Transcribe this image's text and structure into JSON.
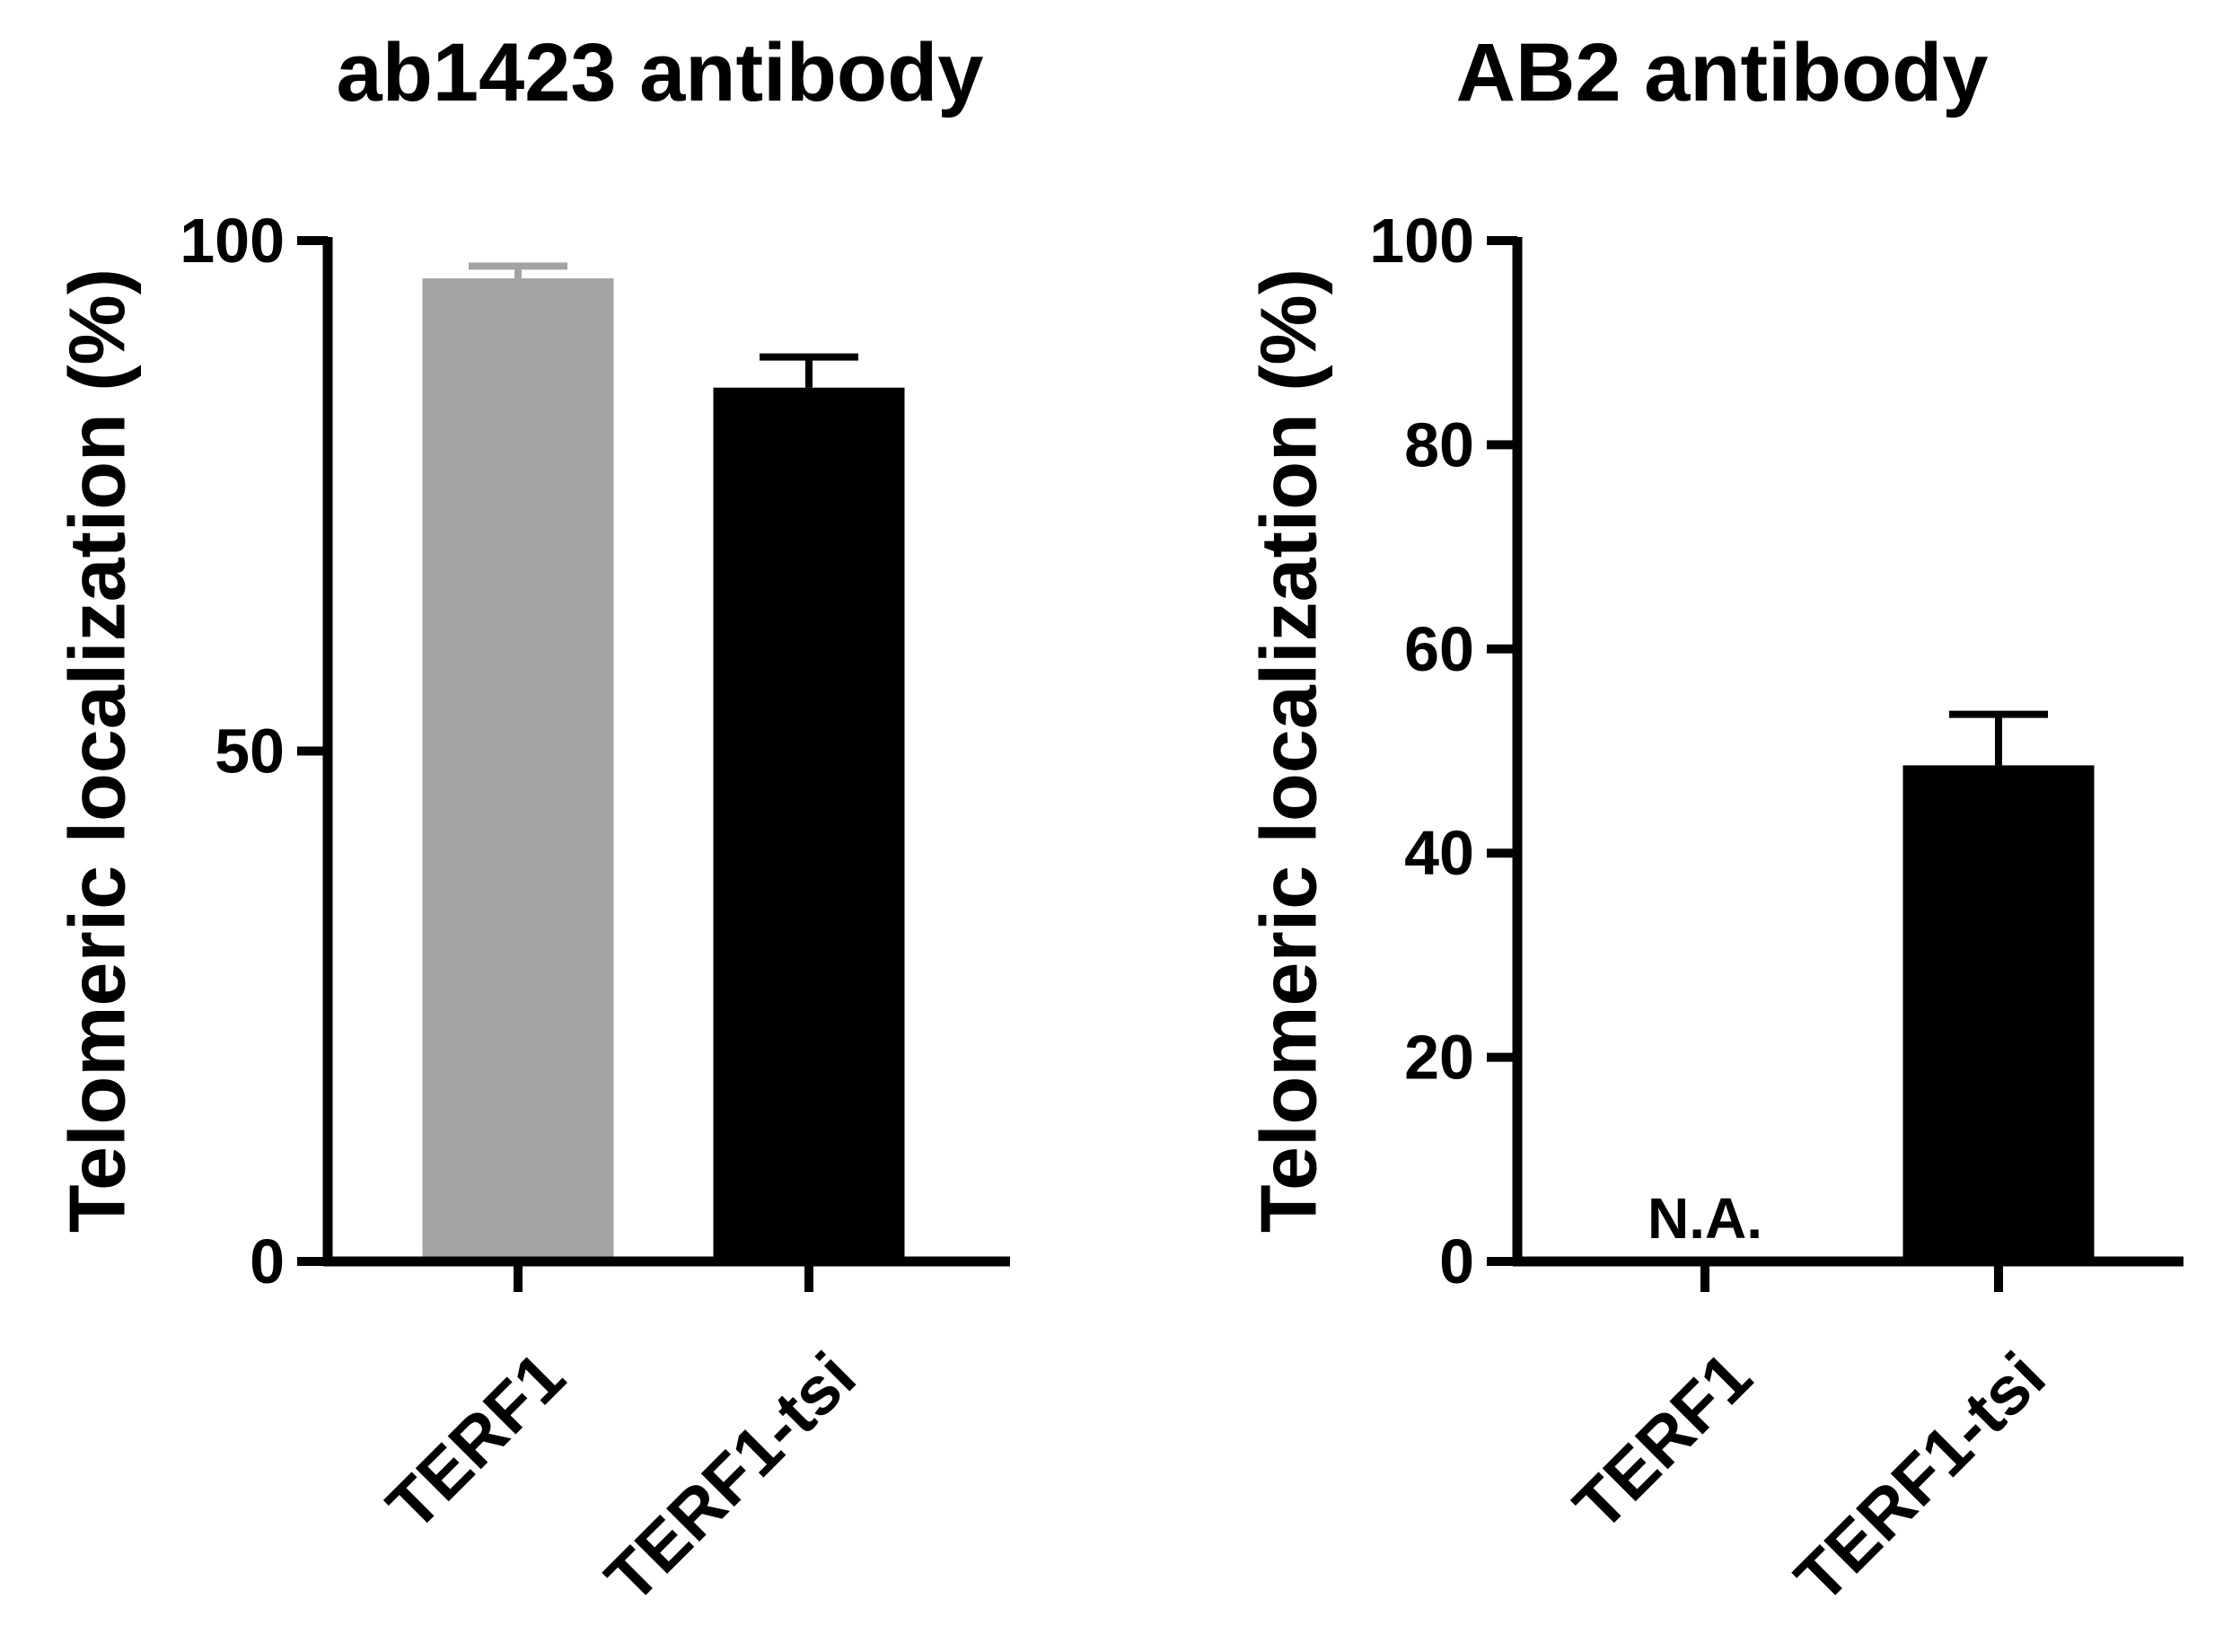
{
  "chart_data": [
    {
      "type": "bar",
      "title": "ab1423 antibody",
      "ylabel": "Telomeric localization (%)",
      "categories": [
        "TERF1",
        "TERF1-tsi"
      ],
      "values": [
        96.3,
        85.6
      ],
      "errors": [
        1.2,
        3.0
      ],
      "colors": [
        "#a3a3a6",
        "#000000"
      ],
      "ylim": [
        0,
        100
      ],
      "yticks": [
        0,
        50,
        100
      ],
      "grid": false,
      "legend": "none",
      "annotations": []
    },
    {
      "type": "bar",
      "title": "AB2 antibody",
      "ylabel": "Telomeric localization (%)",
      "categories": [
        "TERF1",
        "TERF1-tsi"
      ],
      "values": [
        null,
        48.6
      ],
      "errors": [
        null,
        5.0
      ],
      "colors": [
        "#a3a3a6",
        "#000000"
      ],
      "ylim": [
        0,
        100
      ],
      "yticks": [
        0,
        20,
        40,
        60,
        80,
        100
      ],
      "grid": false,
      "legend": "none",
      "annotations": [
        {
          "category": "TERF1",
          "text": "N.A."
        }
      ]
    }
  ]
}
